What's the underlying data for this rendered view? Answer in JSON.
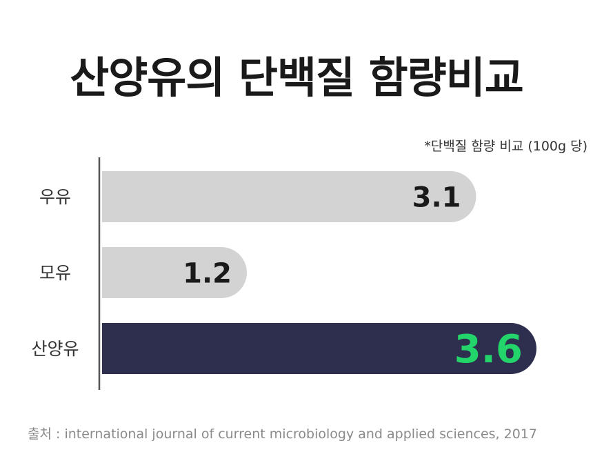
{
  "title": "산양유의 단백질 함량비교",
  "source": "출처 : international journal of current microbiology and applied sciences, 2017",
  "chart_data": {
    "type": "bar",
    "orientation": "horizontal",
    "title": "산양유의 단백질 함량비교",
    "note": "*단백질 함량 비교 (100g 당)",
    "categories": [
      "우유",
      "모유",
      "산양유"
    ],
    "values": [
      3.1,
      1.2,
      3.6
    ],
    "value_labels": [
      "3.1",
      "1.2",
      "3.6"
    ],
    "xlim": [
      0,
      4
    ],
    "grid": false,
    "legend": "none",
    "colors": {
      "bar_default": "#d3d3d3",
      "bar_highlight": "#2e2f4e",
      "label_default": "#1a1a1a",
      "label_highlight": "#22d46a",
      "axis": "#555555",
      "category_text": "#333333"
    },
    "highlight_index": 2
  }
}
